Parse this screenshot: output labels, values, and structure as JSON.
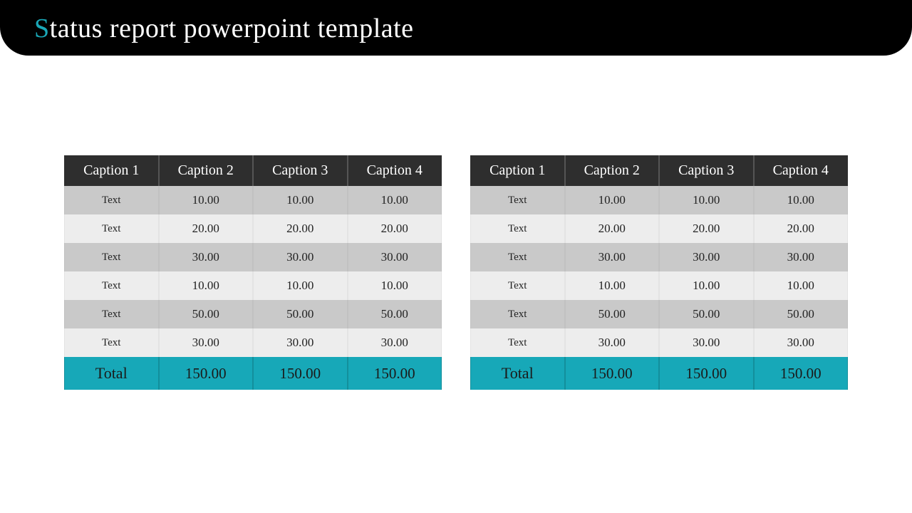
{
  "title_accent_char": "S",
  "title_rest": "tatus report powerpoint template",
  "colors": {
    "header_bg": "#000000",
    "accent": "#1aa8b8",
    "th_bg": "#2e2e2e",
    "th_fg": "#ffffff",
    "row_odd_bg": "#c9c9c9",
    "row_even_bg": "#ededed",
    "total_bg": "#17a8b8",
    "total_fg": "#1a1a1a",
    "page_bg": "#ffffff"
  },
  "tables": [
    {
      "columns": [
        "Caption 1",
        "Caption 2",
        "Caption 3",
        "Caption 4"
      ],
      "rows": [
        [
          "Text",
          "10.00",
          "10.00",
          "10.00"
        ],
        [
          "Text",
          "20.00",
          "20.00",
          "20.00"
        ],
        [
          "Text",
          "30.00",
          "30.00",
          "30.00"
        ],
        [
          "Text",
          "10.00",
          "10.00",
          "10.00"
        ],
        [
          "Text",
          "50.00",
          "50.00",
          "50.00"
        ],
        [
          "Text",
          "30.00",
          "30.00",
          "30.00"
        ]
      ],
      "total": [
        "Total",
        "150.00",
        "150.00",
        "150.00"
      ]
    },
    {
      "columns": [
        "Caption 1",
        "Caption 2",
        "Caption 3",
        "Caption 4"
      ],
      "rows": [
        [
          "Text",
          "10.00",
          "10.00",
          "10.00"
        ],
        [
          "Text",
          "20.00",
          "20.00",
          "20.00"
        ],
        [
          "Text",
          "30.00",
          "30.00",
          "30.00"
        ],
        [
          "Text",
          "10.00",
          "10.00",
          "10.00"
        ],
        [
          "Text",
          "50.00",
          "50.00",
          "50.00"
        ],
        [
          "Text",
          "30.00",
          "30.00",
          "30.00"
        ]
      ],
      "total": [
        "Total",
        "150.00",
        "150.00",
        "150.00"
      ]
    }
  ]
}
